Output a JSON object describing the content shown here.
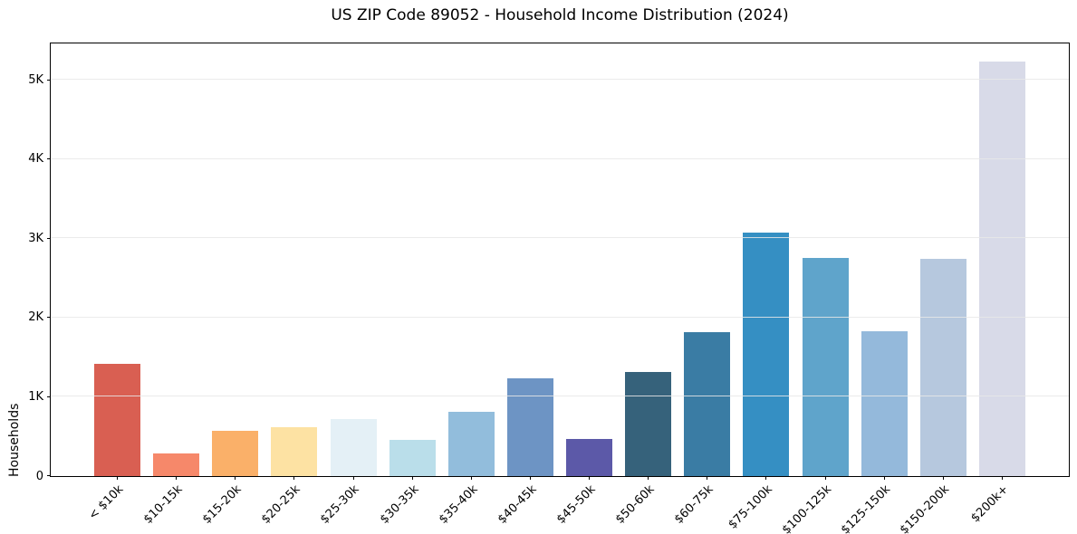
{
  "chart_data": {
    "type": "bar",
    "title": "US ZIP Code 89052 - Household Income Distribution (2024)",
    "xlabel": "",
    "ylabel": "Households",
    "categories": [
      "< $10k",
      "$10-15k",
      "$15-20k",
      "$20-25k",
      "$25-30k",
      "$30-35k",
      "$35-40k",
      "$40-45k",
      "$45-50k",
      "$50-60k",
      "$60-75k",
      "$75-100k",
      "$100-125k",
      "$125-150k",
      "$150-200k",
      "$200k+"
    ],
    "values": [
      1420,
      285,
      570,
      620,
      725,
      460,
      815,
      1230,
      470,
      1315,
      1815,
      3070,
      2755,
      1830,
      2745,
      5230
    ],
    "bar_colors": [
      "#d95f52",
      "#f6886a",
      "#fab069",
      "#fde2a3",
      "#e4f0f6",
      "#badeea",
      "#92bddc",
      "#6d94c4",
      "#5c59a8",
      "#36627b",
      "#3a7ca4",
      "#358fc3",
      "#5fa4cb",
      "#94b9db",
      "#b6c8de",
      "#d8dae8"
    ],
    "ytick_values": [
      0,
      1000,
      2000,
      3000,
      4000,
      5000
    ],
    "ytick_labels": [
      "0",
      "1K",
      "2K",
      "3K",
      "4K",
      "5K"
    ],
    "ylim": [
      0,
      5460
    ],
    "grid": "horizontal",
    "grid_color": "#e8e8e8",
    "axis_color": "#000000",
    "background_color": "#ffffff",
    "legend": "none"
  }
}
